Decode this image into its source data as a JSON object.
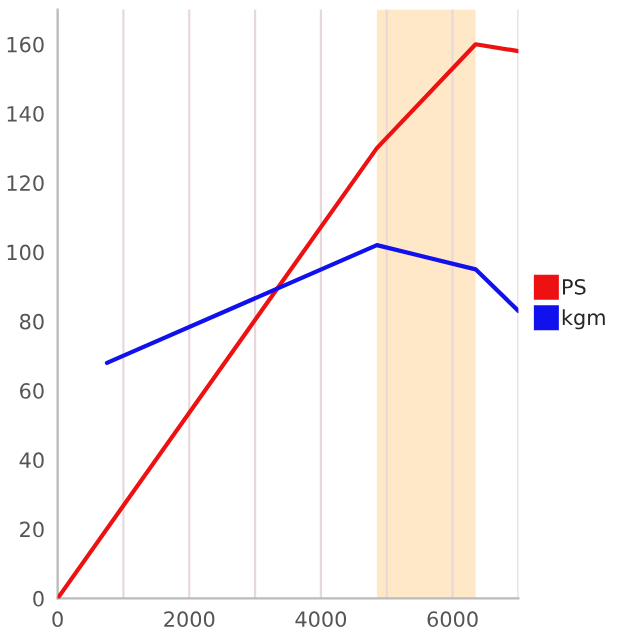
{
  "chart_data": {
    "type": "line",
    "series": [
      {
        "name": "PS",
        "color": "#ee1111",
        "x": [
          0,
          4850,
          6350,
          7000
        ],
        "values": [
          0,
          130,
          160,
          158
        ]
      },
      {
        "name": "kgm",
        "color": "#1111ee",
        "x": [
          750,
          4850,
          6350,
          7000
        ],
        "values": [
          68,
          102,
          95,
          83
        ]
      }
    ],
    "xlim": [
      0,
      7000
    ],
    "xticks": [
      0,
      {
        "value": 1000,
        "label": null
      },
      2000,
      {
        "value": 3000,
        "label": null
      },
      4000,
      {
        "value": 5000,
        "label": null
      },
      6000,
      {
        "value": 7000,
        "label": null
      }
    ],
    "ylim": [
      0,
      170
    ],
    "yticks": [
      0,
      20,
      40,
      60,
      80,
      100,
      120,
      140,
      160
    ],
    "bands": [
      {
        "axis": "x",
        "from": 4850,
        "to": 6350,
        "color": "#ffe8c8"
      }
    ],
    "grid": "x",
    "legend": "right",
    "marker": "none",
    "line_style": "solid"
  }
}
